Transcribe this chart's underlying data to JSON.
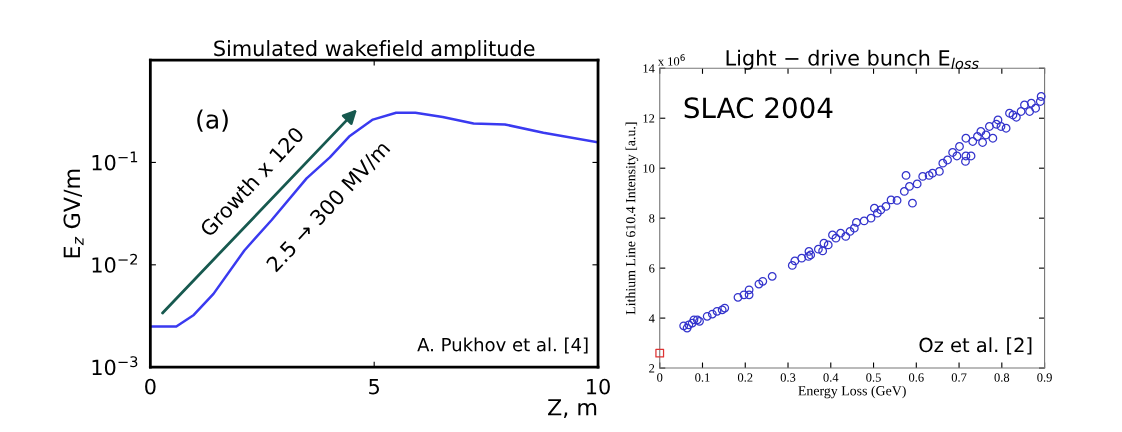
{
  "chart_data": [
    {
      "type": "line",
      "title": "Simulated wakefield amplitude",
      "xlabel": "Z, m",
      "ylabel": "E$_{z}$ GV/m",
      "log": "y",
      "xlim": [
        0,
        10
      ],
      "ylim": [
        0.001,
        1
      ],
      "xticks": [
        0,
        5,
        10
      ],
      "yticks": [
        {
          "value": 0.001,
          "label": "10$^{−3}$"
        },
        {
          "value": 0.01,
          "label": "10$^{−2}$"
        },
        {
          "value": 0.1,
          "label": "10$^{−1}$"
        }
      ],
      "grid": false,
      "annotations": [
        "(a)",
        "Growth x 120",
        "2.5 → 300 MV/m",
        "A. Pukhov et al. [4]"
      ],
      "series": [
        {
          "color": "#3a3af0",
          "x": [
            0,
            0.58,
            0.97,
            1.41,
            2.1,
            2.71,
            3.49,
            4.01,
            4.44,
            4.97,
            5.49,
            5.92,
            6.53,
            7.22,
            7.92,
            8.78,
            10
          ],
          "values": [
            0.0025,
            0.0025,
            0.00324,
            0.0052,
            0.0138,
            0.0274,
            0.0698,
            0.112,
            0.179,
            0.262,
            0.306,
            0.305,
            0.278,
            0.24,
            0.235,
            0.195,
            0.157
          ]
        }
      ]
    },
    {
      "type": "scatter",
      "title": "Light − drive bunch E$_{loss}$",
      "xlabel": "Energy Loss (GeV)",
      "ylabel": "Lithium Line 610.4 Intensity [a.u.]",
      "xlim": [
        0,
        0.9
      ],
      "ylim": [
        2,
        14
      ],
      "xticks": [
        0,
        0.1,
        0.2,
        0.3,
        0.4,
        0.5,
        0.6,
        0.7,
        0.8,
        0.9
      ],
      "yticks": [
        2,
        4,
        6,
        8,
        10,
        12,
        14
      ],
      "grid": false,
      "annotations": [
        "x 10$^{6}$",
        "SLAC 2004",
        "Oz et al. [2]"
      ],
      "series": [
        {
          "color": "#3333cc",
          "marker": "circle",
          "x": [
            0.056,
            0.064,
            0.068,
            0.076,
            0.08,
            0.088,
            0.093,
            0.111,
            0.123,
            0.134,
            0.146,
            0.152,
            0.183,
            0.197,
            0.209,
            0.209,
            0.232,
            0.241,
            0.263,
            0.31,
            0.316,
            0.332,
            0.348,
            0.349,
            0.353,
            0.371,
            0.381,
            0.384,
            0.394,
            0.404,
            0.412,
            0.423,
            0.435,
            0.445,
            0.455,
            0.46,
            0.478,
            0.494,
            0.502,
            0.509,
            0.517,
            0.529,
            0.541,
            0.555,
            0.572,
            0.576,
            0.584,
            0.591,
            0.602,
            0.615,
            0.63,
            0.638,
            0.654,
            0.662,
            0.673,
            0.685,
            0.695,
            0.701,
            0.715,
            0.716,
            0.728,
            0.716,
            0.732,
            0.743,
            0.751,
            0.755,
            0.763,
            0.771,
            0.779,
            0.787,
            0.791,
            0.798,
            0.81,
            0.818,
            0.826,
            0.834,
            0.845,
            0.853,
            0.865,
            0.869,
            0.879,
            0.89,
            0.892
          ],
          "values": [
            3.69,
            3.6,
            3.73,
            3.8,
            3.93,
            3.93,
            3.87,
            4.07,
            4.16,
            4.27,
            4.33,
            4.4,
            4.83,
            4.93,
            5.13,
            4.93,
            5.36,
            5.47,
            5.67,
            6.11,
            6.29,
            6.4,
            6.47,
            6.67,
            6.53,
            6.76,
            6.69,
            7.0,
            6.93,
            7.33,
            7.2,
            7.4,
            7.27,
            7.47,
            7.6,
            7.83,
            7.89,
            8.0,
            8.4,
            8.2,
            8.33,
            8.47,
            8.73,
            8.71,
            9.07,
            9.71,
            9.27,
            8.6,
            9.37,
            9.67,
            9.71,
            9.8,
            9.87,
            10.2,
            10.33,
            10.63,
            10.49,
            10.87,
            10.27,
            10.49,
            10.49,
            11.2,
            11.07,
            11.27,
            11.47,
            11.03,
            11.33,
            11.67,
            11.2,
            11.76,
            11.93,
            11.67,
            11.6,
            12.2,
            12.13,
            12.04,
            12.27,
            12.53,
            12.27,
            12.6,
            12.4,
            12.67,
            12.87
          ]
        },
        {
          "color": "#dd3333",
          "marker": "square",
          "x": [
            0
          ],
          "values": [
            2.6
          ]
        }
      ]
    }
  ]
}
